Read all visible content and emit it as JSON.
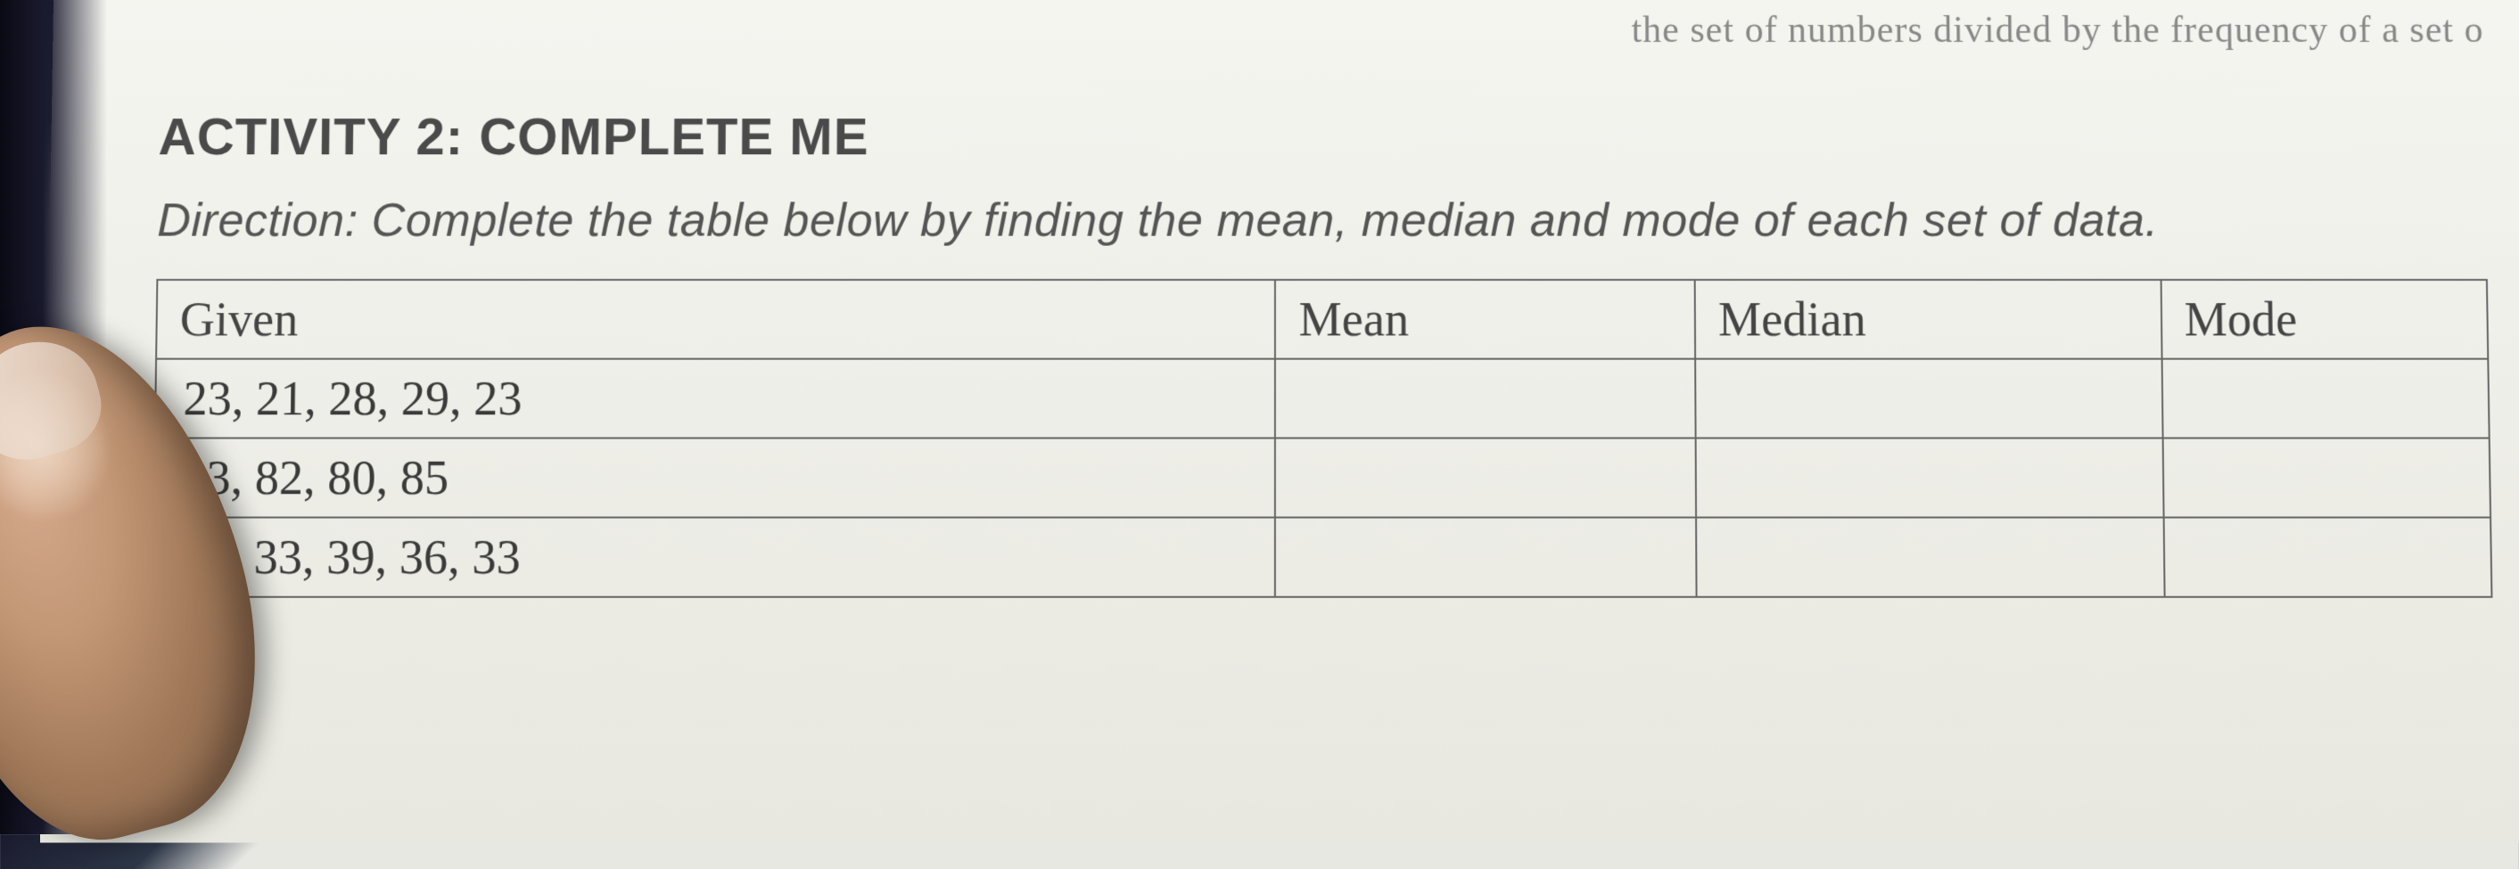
{
  "partial_header": "the set of numbers divided by the frequency of a set o",
  "activity": {
    "title": "ACTIVITY 2: COMPLETE ME",
    "direction_label": "Direction:",
    "direction_text": "Complete the table below by finding the mean, median and mode of each set of data."
  },
  "table": {
    "columns": [
      "Given",
      "Mean",
      "Median",
      "Mode"
    ],
    "column_widths": [
      "48%",
      "18%",
      "20%",
      "14%"
    ],
    "rows": [
      [
        "23, 21, 28, 29, 23",
        "",
        "",
        ""
      ],
      [
        "83, 82, 80, 85",
        "",
        "",
        ""
      ],
      [
        "31, 33, 39, 36, 33",
        "",
        "",
        ""
      ]
    ],
    "border_color": "#666666",
    "text_color": "#444444",
    "header_fontsize": 54,
    "cell_fontsize": 54
  },
  "colors": {
    "paper_bg": "#eeeee8",
    "title_color": "#4a4a4a",
    "direction_color": "#555555",
    "partial_text_color": "#888888"
  }
}
